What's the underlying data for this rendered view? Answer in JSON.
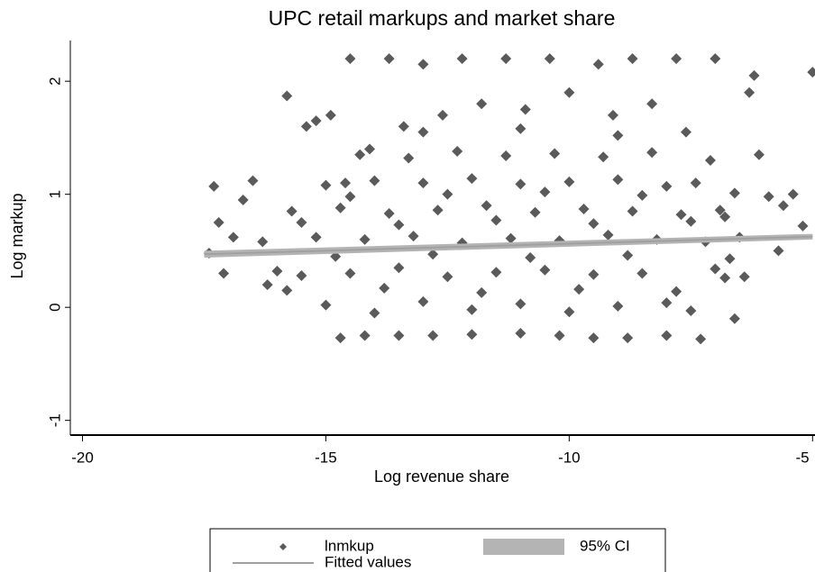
{
  "chart_data": {
    "type": "scatter",
    "title": "UPC retail markups and market share",
    "x_label": "Log revenue share",
    "y_label": "Log markup",
    "xlim": [
      -20.25,
      -4.95
    ],
    "ylim": [
      -1.13,
      2.36
    ],
    "xticks": [
      -20,
      -15,
      -10,
      -5
    ],
    "yticks": [
      -1,
      0,
      1,
      2
    ],
    "series": [
      {
        "name": "lnmkup",
        "type": "scatter",
        "color": "#5a5a5a",
        "x": [
          -17.3,
          -17.2,
          -17.1,
          -17.4,
          -16.9,
          -16.5,
          -16.7,
          -16.2,
          -15.8,
          -15.4,
          -15.2,
          -14.9,
          -14.5,
          -14.7,
          -14.2,
          -13.5,
          -12.8,
          -12,
          -11,
          -10.2,
          -9.5,
          -8.8,
          -8,
          -7.3,
          -6.6,
          -6.4,
          -6.1,
          -6.3,
          -6.2,
          -7,
          -7.8,
          -8.7,
          -9.4,
          -10.4,
          -11.3,
          -12.2,
          -13,
          -13.7,
          -5,
          -5.2,
          -5.4,
          -5.6,
          -5.7,
          -5.9,
          -6.8,
          -7.1,
          -7.6,
          -8.3,
          -9.1,
          -10,
          -10.9,
          -11.8,
          -12.6,
          -13.4,
          -14.1,
          -14.6,
          -15,
          -14,
          -13,
          -12,
          -11,
          -10,
          -9,
          -8,
          -7.5,
          -16,
          -15.5,
          -14.5,
          -13.5,
          -12.5,
          -11.5,
          -10.5,
          -9.5,
          -8.5,
          -7,
          -6.8,
          -16.3,
          -15.2,
          -14.2,
          -13.2,
          -12.2,
          -11.2,
          -10.2,
          -9.2,
          -8.2,
          -7.2,
          -6.5,
          -15.7,
          -14.7,
          -13.7,
          -12.7,
          -11.7,
          -10.7,
          -9.7,
          -8.7,
          -7.7,
          -6.9,
          -15,
          -14,
          -13,
          -12,
          -11,
          -10,
          -9,
          -8,
          -7.4,
          -14.3,
          -13.3,
          -12.3,
          -11.3,
          -10.3,
          -9.3,
          -8.3,
          -15.8,
          -13.8,
          -11.8,
          -9.8,
          -7.8,
          -14.8,
          -12.8,
          -10.8,
          -8.8,
          -6.7,
          -15.5,
          -13.5,
          -11.5,
          -9.5,
          -7.5,
          -14.5,
          -12.5,
          -10.5,
          -8.5,
          -6.6,
          -13,
          -11,
          -9
        ],
        "y": [
          1.07,
          0.75,
          0.3,
          0.48,
          0.62,
          1.12,
          0.95,
          0.2,
          1.87,
          1.6,
          1.65,
          1.7,
          2.2,
          -0.27,
          -0.25,
          -0.25,
          -0.25,
          -0.24,
          -0.23,
          -0.25,
          -0.27,
          -0.27,
          -0.25,
          -0.28,
          -0.1,
          0.27,
          1.35,
          1.9,
          2.05,
          2.2,
          2.2,
          2.2,
          2.15,
          2.2,
          2.2,
          2.2,
          2.15,
          2.2,
          2.08,
          0.72,
          1.0,
          0.9,
          0.5,
          0.98,
          0.8,
          1.3,
          1.55,
          1.8,
          1.7,
          1.9,
          1.75,
          1.8,
          1.7,
          1.6,
          1.4,
          1.1,
          0.02,
          -0.05,
          0.05,
          -0.02,
          0.03,
          -0.04,
          0.01,
          0.04,
          -0.03,
          0.32,
          0.28,
          0.3,
          0.35,
          0.27,
          0.31,
          0.33,
          0.29,
          0.3,
          0.34,
          0.26,
          0.58,
          0.62,
          0.6,
          0.63,
          0.57,
          0.61,
          0.59,
          0.64,
          0.6,
          0.58,
          0.62,
          0.85,
          0.88,
          0.83,
          0.86,
          0.9,
          0.84,
          0.87,
          0.85,
          0.82,
          0.86,
          1.08,
          1.12,
          1.1,
          1.14,
          1.09,
          1.11,
          1.13,
          1.07,
          1.1,
          1.35,
          1.32,
          1.38,
          1.34,
          1.36,
          1.33,
          1.37,
          0.15,
          0.17,
          0.13,
          0.16,
          0.14,
          0.45,
          0.47,
          0.44,
          0.46,
          0.43,
          0.75,
          0.73,
          0.77,
          0.74,
          0.76,
          0.98,
          1.0,
          1.02,
          0.99,
          1.01,
          1.55,
          1.58,
          1.52
        ]
      },
      {
        "name": "95% CI",
        "type": "area",
        "color": "#b4b4b4",
        "x": [
          -17.5,
          -5
        ],
        "lower": [
          0.44,
          0.6
        ],
        "upper": [
          0.5,
          0.65
        ]
      },
      {
        "name": "Fitted values",
        "type": "line",
        "color": "#a0a0a0",
        "x": [
          -17.5,
          -5
        ],
        "y": [
          0.47,
          0.625
        ]
      }
    ]
  }
}
